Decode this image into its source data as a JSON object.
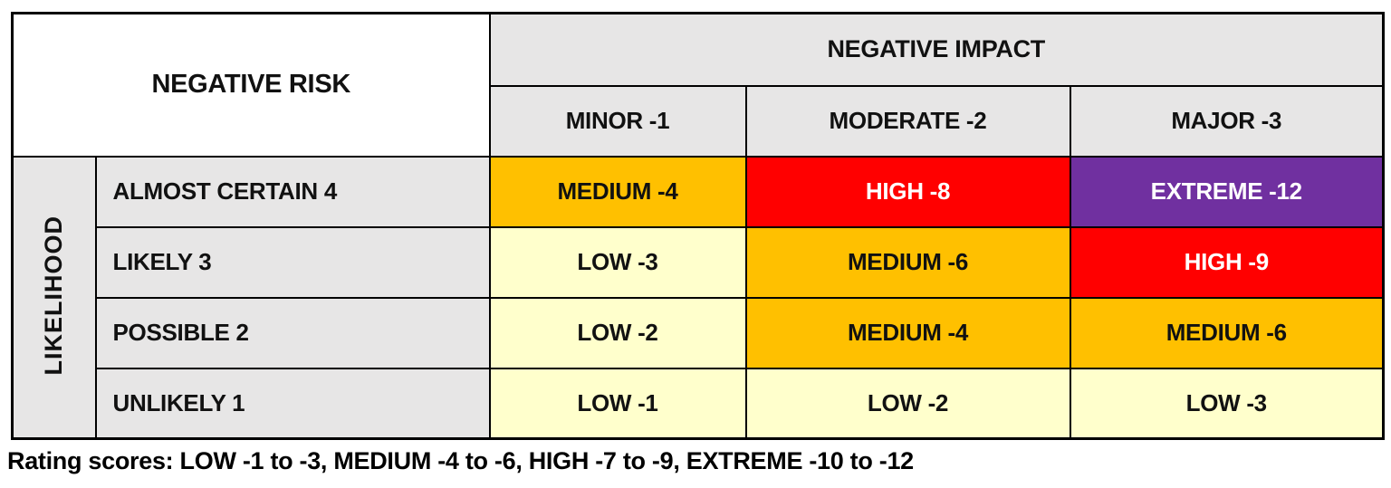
{
  "matrix": {
    "corner_title": "NEGATIVE RISK",
    "impact_header": "NEGATIVE IMPACT",
    "likelihood_header": "LIKELIHOOD",
    "impact_levels": [
      "MINOR -1",
      "MODERATE -2",
      "MAJOR -3"
    ],
    "rows": [
      {
        "label": "ALMOST CERTAIN 4",
        "cells": [
          {
            "text": "MEDIUM -4",
            "level": "medium"
          },
          {
            "text": "HIGH -8",
            "level": "high"
          },
          {
            "text": "EXTREME -12",
            "level": "extreme"
          }
        ]
      },
      {
        "label": "LIKELY 3",
        "cells": [
          {
            "text": "LOW -3",
            "level": "low"
          },
          {
            "text": "MEDIUM -6",
            "level": "medium"
          },
          {
            "text": "HIGH -9",
            "level": "high"
          }
        ]
      },
      {
        "label": "POSSIBLE 2",
        "cells": [
          {
            "text": "LOW -2",
            "level": "low"
          },
          {
            "text": "MEDIUM -4",
            "level": "medium"
          },
          {
            "text": "MEDIUM -6",
            "level": "medium"
          }
        ]
      },
      {
        "label": "UNLIKELY 1",
        "cells": [
          {
            "text": "LOW -1",
            "level": "low"
          },
          {
            "text": "LOW -2",
            "level": "low"
          },
          {
            "text": "LOW -3",
            "level": "low"
          }
        ]
      }
    ]
  },
  "footer": {
    "text": "Rating scores: LOW -1 to -3, MEDIUM -4 to -6, HIGH -7 to -9, EXTREME -10 to -12"
  },
  "colors": {
    "low": "#FFFFCC",
    "medium": "#FFC000",
    "high": "#FF0000",
    "extreme": "#7030A0",
    "header_gray": "#E7E6E6",
    "title_purple": "#7030A0",
    "border": "#000000"
  },
  "chart_data": {
    "type": "heatmap",
    "title": "NEGATIVE RISK",
    "columns_header": "NEGATIVE IMPACT",
    "rows_header": "LIKELIHOOD",
    "columns": [
      "MINOR -1",
      "MODERATE -2",
      "MAJOR -3"
    ],
    "column_values": [
      -1,
      -2,
      -3
    ],
    "rows": [
      "ALMOST CERTAIN 4",
      "LIKELY 3",
      "POSSIBLE 2",
      "UNLIKELY 1"
    ],
    "row_values": [
      4,
      3,
      2,
      1
    ],
    "cell_labels": [
      [
        "MEDIUM -4",
        "HIGH -8",
        "EXTREME -12"
      ],
      [
        "LOW -3",
        "MEDIUM -6",
        "HIGH -9"
      ],
      [
        "LOW -2",
        "MEDIUM -4",
        "MEDIUM -6"
      ],
      [
        "LOW -1",
        "LOW -2",
        "LOW -3"
      ]
    ],
    "cell_scores": [
      [
        -4,
        -8,
        -12
      ],
      [
        -3,
        -6,
        -9
      ],
      [
        -2,
        -4,
        -6
      ],
      [
        -1,
        -2,
        -3
      ]
    ],
    "cell_levels": [
      [
        "medium",
        "high",
        "extreme"
      ],
      [
        "low",
        "medium",
        "high"
      ],
      [
        "low",
        "medium",
        "medium"
      ],
      [
        "low",
        "low",
        "low"
      ]
    ],
    "legend": "Rating scores: LOW -1 to -3, MEDIUM -4 to -6, HIGH -7 to -9, EXTREME -10 to -12",
    "legend_position": "bottom"
  }
}
